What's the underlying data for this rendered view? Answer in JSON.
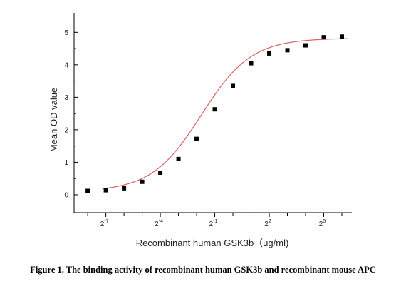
{
  "chart_data": {
    "type": "scatter",
    "title": "",
    "xlabel": "Recombinant human  GSK3b（ug/ml)",
    "ylabel": "Mean OD value",
    "x_scale": "log2",
    "x_tick_labels": [
      {
        "value": 0.0078125,
        "label": "2",
        "exp": "-7"
      },
      {
        "value": 0.0625,
        "label": "2",
        "exp": "-4"
      },
      {
        "value": 0.5,
        "label": "2",
        "exp": "-1"
      },
      {
        "value": 4,
        "label": "2",
        "exp": "2"
      },
      {
        "value": 32,
        "label": "2",
        "exp": "5"
      }
    ],
    "ylim": [
      -0.55,
      5.6
    ],
    "y_ticks": [
      0,
      1,
      2,
      3,
      4,
      5
    ],
    "grid": false,
    "legend": "none",
    "series": [
      {
        "marker": "square",
        "color": "#000000",
        "x": [
          0.00390625,
          0.0078125,
          0.015625,
          0.03125,
          0.0625,
          0.125,
          0.25,
          0.5,
          1,
          2,
          4,
          8,
          16,
          32,
          64
        ],
        "y": [
          0.12,
          0.14,
          0.2,
          0.4,
          0.68,
          1.1,
          1.72,
          2.63,
          3.35,
          4.05,
          4.35,
          4.45,
          4.6,
          4.85,
          4.87
        ]
      }
    ],
    "fit_curve": {
      "type": "4PL",
      "color": "#e06060",
      "bottom": 0.1,
      "top": 4.82,
      "ec50": 0.3,
      "hill": 1.05
    }
  },
  "caption": "Figure 1. The binding activity of recombinant human GSK3b and recombinant mouse APC"
}
